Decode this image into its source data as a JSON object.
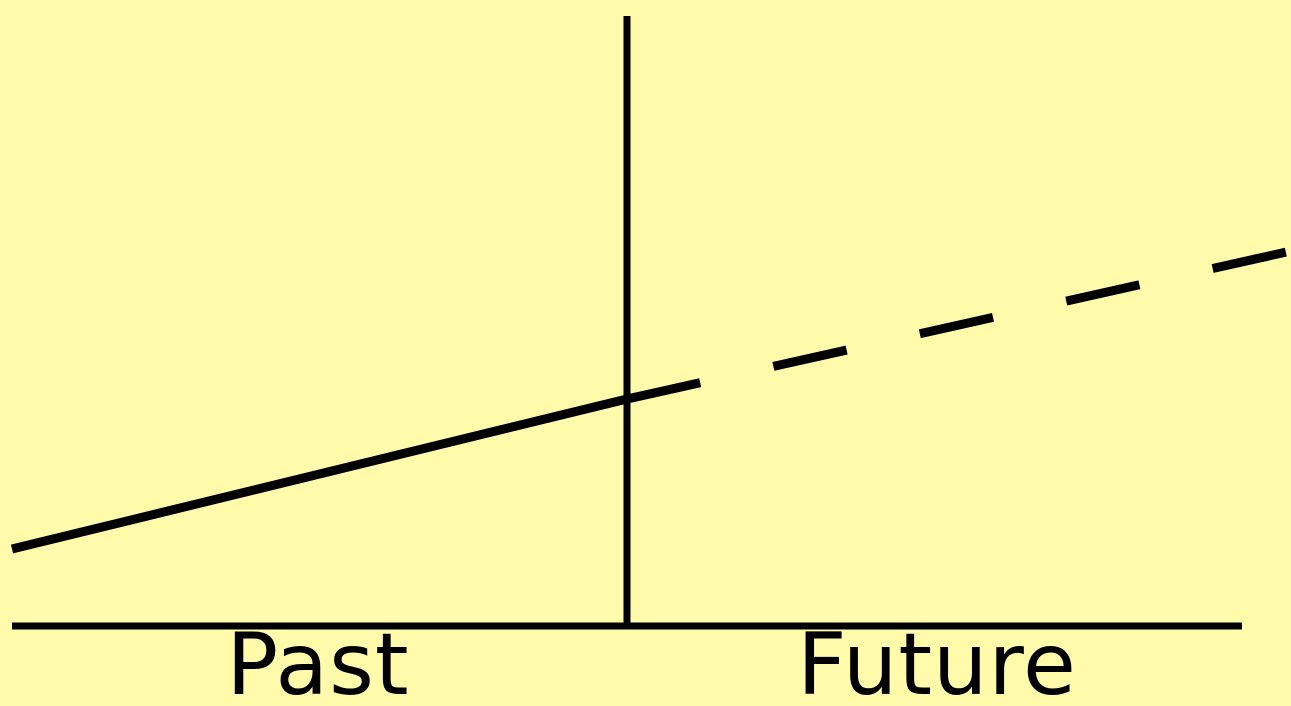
{
  "colors": {
    "background": "#fffbaa",
    "ink": "#000000"
  },
  "labels": {
    "past": "Past",
    "future": "Future"
  },
  "trend": {
    "past_segment": "solid",
    "future_segment": "dashed"
  }
}
